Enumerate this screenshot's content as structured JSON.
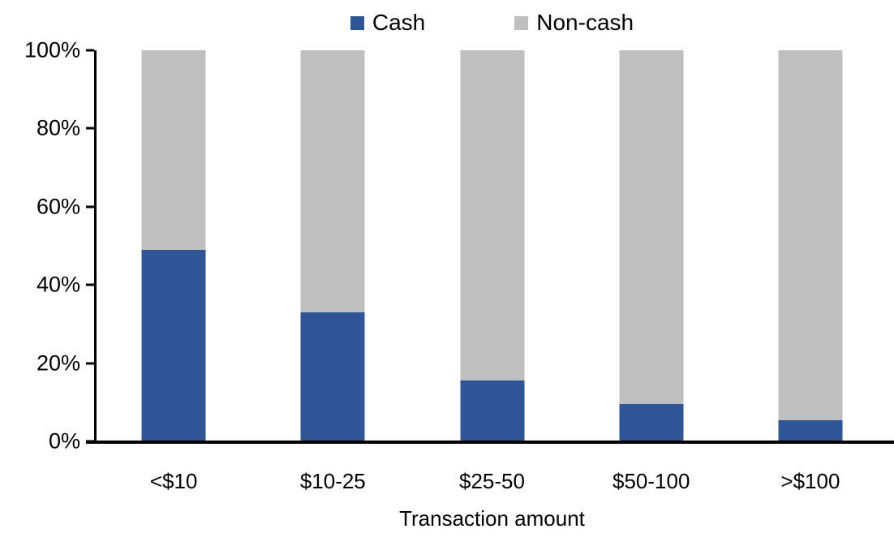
{
  "chart_data": {
    "type": "bar",
    "stacked": true,
    "percent_stacked": true,
    "xlabel": "Transaction amount",
    "ylabel": "",
    "categories": [
      "<$10",
      "$10-25",
      "$25-50",
      "$50-100",
      ">$100"
    ],
    "series": [
      {
        "name": "Cash",
        "color": "#2f5597",
        "values": [
          49,
          33,
          15.5,
          9.5,
          5.5
        ]
      },
      {
        "name": "Non-cash",
        "color": "#bfbfbf",
        "values": [
          51,
          67,
          84.5,
          90.5,
          94.5
        ]
      }
    ],
    "ylim": [
      0,
      100
    ],
    "yticks": [
      0,
      20,
      40,
      60,
      80,
      100
    ],
    "ytick_labels": [
      "0%",
      "20%",
      "40%",
      "60%",
      "80%",
      "100%"
    ],
    "grid": false,
    "legend_position": "top-center",
    "colors": {
      "axis": "#000000",
      "text": "#000000",
      "background": "#ffffff"
    }
  }
}
